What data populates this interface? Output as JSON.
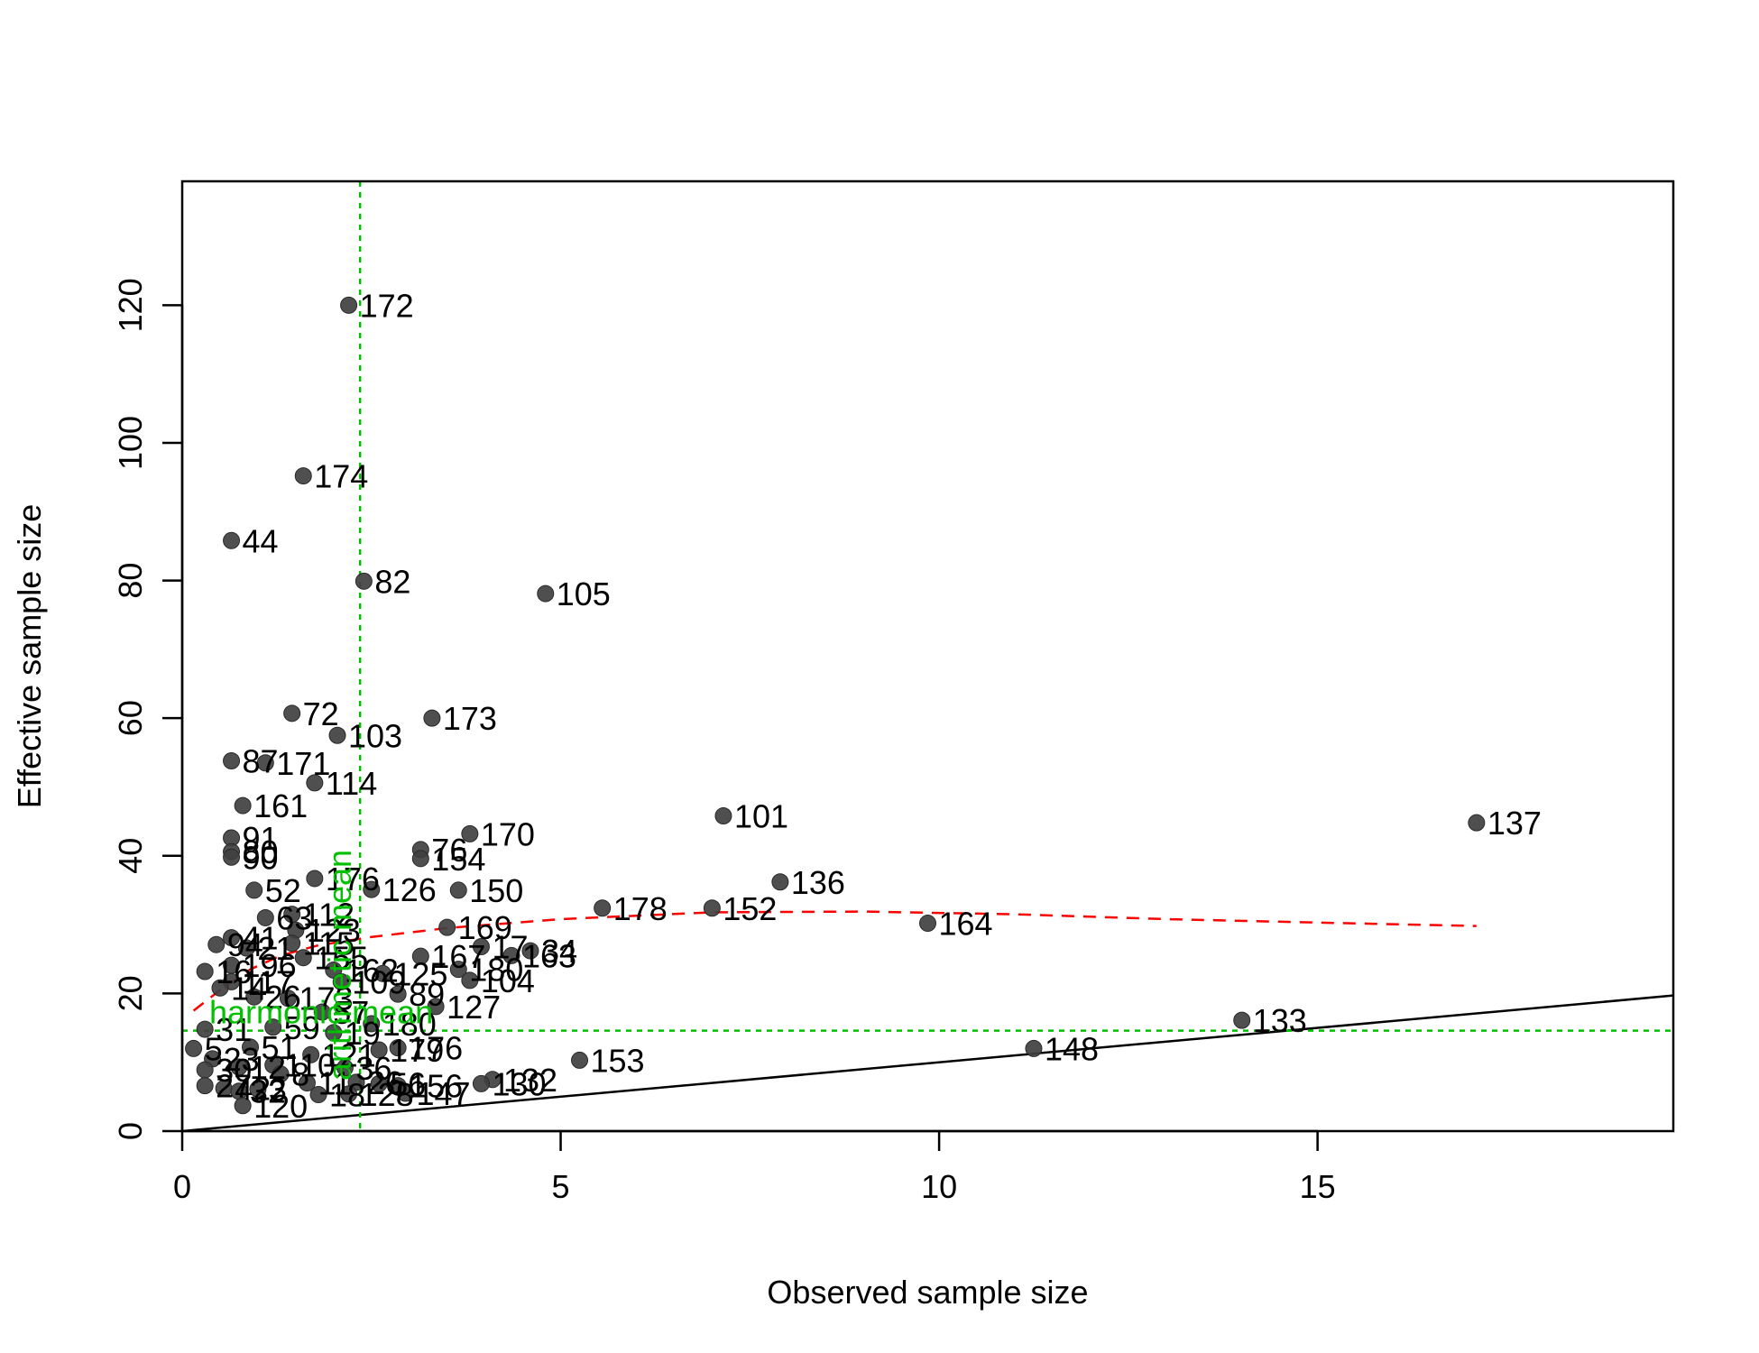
{
  "chart_data": {
    "type": "scatter",
    "title": "",
    "xlabel": "Observed sample size",
    "ylabel": "Effective sample size",
    "xlim": [
      0,
      19.7
    ],
    "ylim": [
      0,
      138
    ],
    "x_ticks": [
      0,
      5,
      10,
      15
    ],
    "y_ticks": [
      0,
      20,
      40,
      60,
      80,
      100,
      120
    ],
    "colors": {
      "points": "#404040",
      "trend": "#ff0000",
      "reference": "#00c000",
      "identity": "#000000"
    },
    "reference_lines": {
      "arithmetic_mean": {
        "label": "arithmetic mean",
        "x": 2.35
      },
      "harmonic_mean": {
        "label": "harmonic mean",
        "y": 14.6
      }
    },
    "identity_line": {
      "slope": 1,
      "intercept": 0
    },
    "trend_line": [
      [
        0.15,
        17.5
      ],
      [
        0.5,
        20.5
      ],
      [
        0.9,
        23.5
      ],
      [
        1.3,
        25.5
      ],
      [
        1.8,
        27
      ],
      [
        2.5,
        28.2
      ],
      [
        3.5,
        29.5
      ],
      [
        5,
        30.8
      ],
      [
        7,
        31.8
      ],
      [
        9,
        31.9
      ],
      [
        11,
        31.5
      ],
      [
        13,
        30.8
      ],
      [
        15,
        30.3
      ],
      [
        17.1,
        29.8
      ]
    ],
    "points": [
      {
        "label": "172",
        "x": 2.2,
        "y": 120
      },
      {
        "label": "174",
        "x": 1.6,
        "y": 95.2
      },
      {
        "label": "44",
        "x": 0.65,
        "y": 85.8
      },
      {
        "label": "82",
        "x": 2.4,
        "y": 79.9
      },
      {
        "label": "105",
        "x": 4.8,
        "y": 78.1
      },
      {
        "label": "72",
        "x": 1.45,
        "y": 60.7
      },
      {
        "label": "173",
        "x": 3.3,
        "y": 60
      },
      {
        "label": "103",
        "x": 2.05,
        "y": 57.5
      },
      {
        "label": "87",
        "x": 0.65,
        "y": 53.8
      },
      {
        "label": "171",
        "x": 1.1,
        "y": 53.5
      },
      {
        "label": "114",
        "x": 1.75,
        "y": 50.6
      },
      {
        "label": "161",
        "x": 0.8,
        "y": 47.3
      },
      {
        "label": "101",
        "x": 7.15,
        "y": 45.8
      },
      {
        "label": "137",
        "x": 17.1,
        "y": 44.8
      },
      {
        "label": "170",
        "x": 3.8,
        "y": 43.2
      },
      {
        "label": "91",
        "x": 0.65,
        "y": 42.6
      },
      {
        "label": "76",
        "x": 3.15,
        "y": 40.9
      },
      {
        "label": "154",
        "x": 3.15,
        "y": 39.6
      },
      {
        "label": "80",
        "x": 0.65,
        "y": 40.6
      },
      {
        "label": "90",
        "x": 0.65,
        "y": 39.8
      },
      {
        "label": "176",
        "x": 1.75,
        "y": 36.7
      },
      {
        "label": "136",
        "x": 7.9,
        "y": 36.2
      },
      {
        "label": "126",
        "x": 2.5,
        "y": 35.1
      },
      {
        "label": "150",
        "x": 3.65,
        "y": 35
      },
      {
        "label": "52",
        "x": 0.95,
        "y": 35
      },
      {
        "label": "178",
        "x": 5.55,
        "y": 32.4
      },
      {
        "label": "152",
        "x": 7,
        "y": 32.4
      },
      {
        "label": "112",
        "x": 1.45,
        "y": 31.5
      },
      {
        "label": "63",
        "x": 1.1,
        "y": 31
      },
      {
        "label": "164",
        "x": 9.85,
        "y": 30.2
      },
      {
        "label": "169",
        "x": 3.5,
        "y": 29.6
      },
      {
        "label": "123",
        "x": 1.5,
        "y": 29.2
      },
      {
        "label": "34",
        "x": 4.6,
        "y": 26.2
      },
      {
        "label": "163",
        "x": 4.35,
        "y": 25.5
      },
      {
        "label": "17",
        "x": 3.95,
        "y": 26.8
      },
      {
        "label": "167",
        "x": 3.15,
        "y": 25.4
      },
      {
        "label": "115",
        "x": 1.45,
        "y": 27.3
      },
      {
        "label": "41",
        "x": 0.65,
        "y": 28.1
      },
      {
        "label": "155",
        "x": 1.6,
        "y": 25.2
      },
      {
        "label": "94",
        "x": 0.45,
        "y": 27.1
      },
      {
        "label": "21",
        "x": 0.85,
        "y": 26.6
      },
      {
        "label": "180",
        "x": 3.65,
        "y": 23.5
      },
      {
        "label": "104",
        "x": 3.8,
        "y": 21.9
      },
      {
        "label": "196",
        "x": 0.65,
        "y": 24.1
      },
      {
        "label": "162",
        "x": 2.0,
        "y": 23.4
      },
      {
        "label": "125",
        "x": 2.65,
        "y": 22.9
      },
      {
        "label": "109",
        "x": 2.1,
        "y": 21.7
      },
      {
        "label": "117",
        "x": 0.65,
        "y": 21.7
      },
      {
        "label": "16",
        "x": 0.3,
        "y": 23.2
      },
      {
        "label": "14",
        "x": 0.5,
        "y": 20.8
      },
      {
        "label": "89",
        "x": 2.85,
        "y": 19.9
      },
      {
        "label": "26",
        "x": 0.95,
        "y": 19.5
      },
      {
        "label": "173b",
        "x": 1.4,
        "y": 19.3
      },
      {
        "label": "127",
        "x": 3.35,
        "y": 18.1
      },
      {
        "label": "57",
        "x": 1.85,
        "y": 17.3
      },
      {
        "label": "133",
        "x": 14,
        "y": 16.1
      },
      {
        "label": "180b",
        "x": 2.5,
        "y": 15.6
      },
      {
        "label": "31",
        "x": 0.3,
        "y": 14.8
      },
      {
        "label": "59",
        "x": 1.2,
        "y": 15.1
      },
      {
        "label": "19",
        "x": 2.0,
        "y": 14.3
      },
      {
        "label": "148",
        "x": 11.25,
        "y": 12
      },
      {
        "label": "153",
        "x": 5.25,
        "y": 10.3
      },
      {
        "label": "176b",
        "x": 2.85,
        "y": 12.1
      },
      {
        "label": "179",
        "x": 2.6,
        "y": 11.8
      },
      {
        "label": "5",
        "x": 0.15,
        "y": 12
      },
      {
        "label": "51",
        "x": 0.9,
        "y": 12.2
      },
      {
        "label": "121",
        "x": 1.7,
        "y": 11.1
      },
      {
        "label": "23",
        "x": 0.4,
        "y": 10.5
      },
      {
        "label": "30",
        "x": 0.3,
        "y": 8.9
      },
      {
        "label": "110",
        "x": 1.2,
        "y": 9.6
      },
      {
        "label": "36",
        "x": 2.15,
        "y": 9.2
      },
      {
        "label": "12",
        "x": 0.75,
        "y": 9.3
      },
      {
        "label": "8",
        "x": 1.3,
        "y": 8.3
      },
      {
        "label": "132",
        "x": 4.1,
        "y": 7.5
      },
      {
        "label": "130",
        "x": 3.95,
        "y": 6.9
      },
      {
        "label": "156",
        "x": 2.85,
        "y": 6.6
      },
      {
        "label": "56",
        "x": 2.6,
        "y": 6.9
      },
      {
        "label": "26b",
        "x": 2.3,
        "y": 7.1
      },
      {
        "label": "11",
        "x": 1.65,
        "y": 7.0
      },
      {
        "label": "27",
        "x": 0.3,
        "y": 6.6
      },
      {
        "label": "42",
        "x": 0.55,
        "y": 6.2
      },
      {
        "label": "32",
        "x": 0.75,
        "y": 5.8
      },
      {
        "label": "3",
        "x": 1.0,
        "y": 6.1
      },
      {
        "label": "147",
        "x": 2.95,
        "y": 5.5
      },
      {
        "label": "128",
        "x": 2.2,
        "y": 5.4
      },
      {
        "label": "18",
        "x": 1.8,
        "y": 5.3
      },
      {
        "label": "120",
        "x": 0.8,
        "y": 3.7
      }
    ]
  }
}
